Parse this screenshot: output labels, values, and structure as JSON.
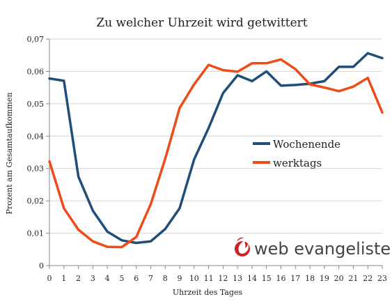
{
  "chart_data": {
    "type": "line",
    "title": "Zu welcher Uhrzeit wird getwittert",
    "xlabel": "Uhrzeit des Tages",
    "ylabel": "Prozent am Gesamtaufkommen",
    "categories": [
      "0",
      "1",
      "2",
      "3",
      "4",
      "5",
      "6",
      "7",
      "8",
      "9",
      "10",
      "11",
      "12",
      "13",
      "14",
      "15",
      "16",
      "17",
      "18",
      "19",
      "20",
      "21",
      "22",
      "23"
    ],
    "y_ticks": [
      "0",
      "0,01",
      "0,02",
      "0,03",
      "0,04",
      "0,05",
      "0,06",
      "0,07"
    ],
    "ylim": [
      0,
      0.07
    ],
    "grid": true,
    "legend_position": "right-middle",
    "series": [
      {
        "name": "Wochenende",
        "color": "#1f4e79",
        "values": [
          0.0578,
          0.0571,
          0.0275,
          0.017,
          0.0105,
          0.0078,
          0.007,
          0.0075,
          0.0113,
          0.0177,
          0.0328,
          0.0425,
          0.0533,
          0.0588,
          0.057,
          0.06,
          0.0556,
          0.0558,
          0.0562,
          0.057,
          0.0614,
          0.0614,
          0.0656,
          0.0641
        ]
      },
      {
        "name": "werktags",
        "color": "#ee4b18",
        "values": [
          0.0322,
          0.0177,
          0.0111,
          0.0075,
          0.0058,
          0.0057,
          0.0088,
          0.019,
          0.033,
          0.0487,
          0.056,
          0.062,
          0.0604,
          0.0599,
          0.0625,
          0.0625,
          0.0637,
          0.0607,
          0.056,
          0.055,
          0.0539,
          0.0553,
          0.058,
          0.0473
        ]
      }
    ]
  },
  "logo": {
    "text": "web evangelisten",
    "icon": "flame-icon",
    "color": "#cc2222"
  }
}
